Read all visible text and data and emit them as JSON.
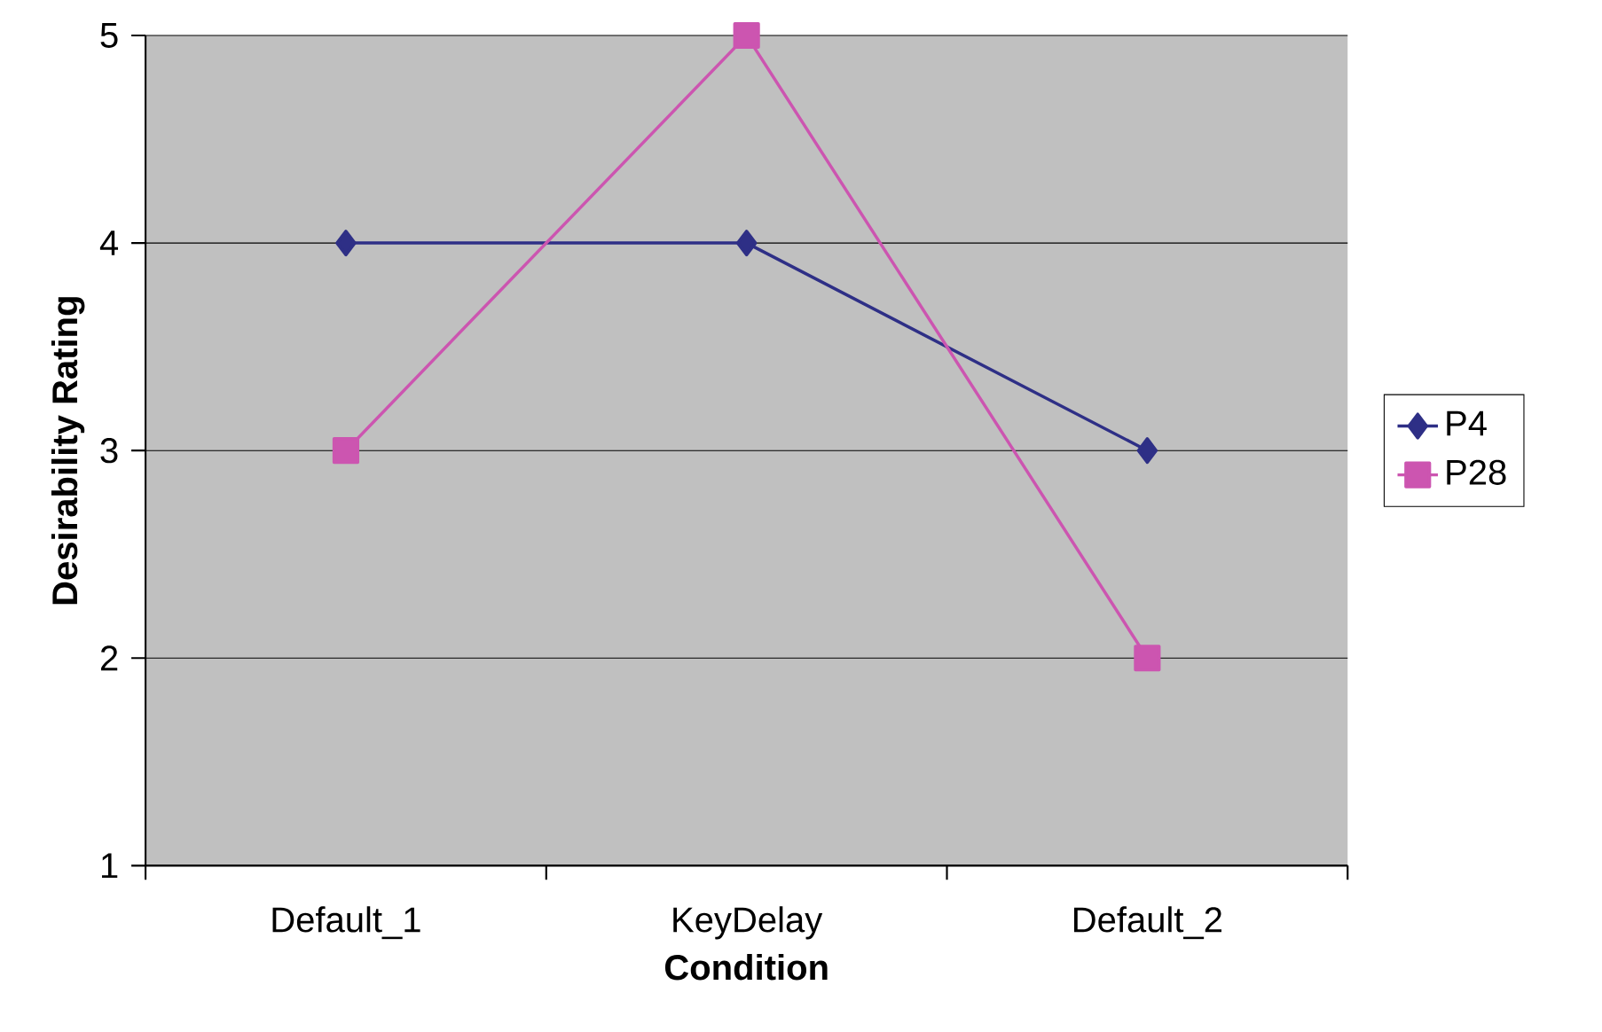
{
  "chart_data": {
    "type": "line",
    "xlabel": "Condition",
    "ylabel": "Desirability Rating",
    "categories": [
      "Default_1",
      "KeyDelay",
      "Default_2"
    ],
    "series": [
      {
        "name": "P4",
        "color": "#2e2f86",
        "values": [
          4,
          4,
          3
        ],
        "marker": "diamond"
      },
      {
        "name": "P28",
        "color": "#cc55b0",
        "values": [
          3,
          5,
          2
        ],
        "marker": "square"
      }
    ],
    "ylim": [
      1,
      5
    ],
    "yticks": [
      1,
      2,
      3,
      4,
      5
    ],
    "grid": "y",
    "legend": "right",
    "line_style": "solid"
  }
}
